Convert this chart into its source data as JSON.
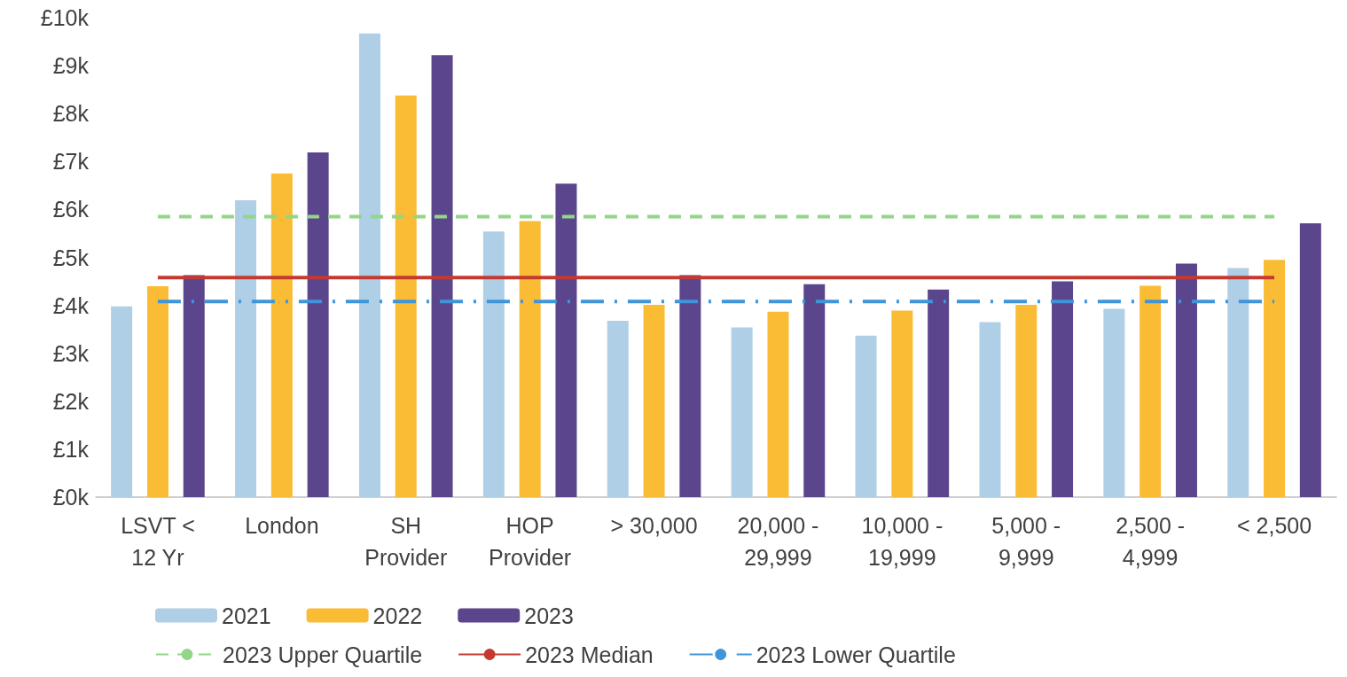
{
  "chart_data": {
    "type": "bar",
    "categories": [
      "LSVT <\n12 Yr",
      "London",
      "SH\nProvider",
      "HOP\nProvider",
      "> 30,000",
      "20,000 -\n29,999",
      "10,000 -\n19,999",
      "5,000 -\n9,999",
      "2,500 -\n4,999",
      "< 2,500"
    ],
    "series": [
      {
        "name": "2021",
        "color": "#afcfe6",
        "values": [
          3.98,
          6.19,
          9.67,
          5.54,
          3.68,
          3.54,
          3.37,
          3.65,
          3.93,
          4.78
        ]
      },
      {
        "name": "2022",
        "color": "#fbbc35",
        "values": [
          4.4,
          6.75,
          8.38,
          5.76,
          4.01,
          3.87,
          3.89,
          4.01,
          4.41,
          4.95
        ]
      },
      {
        "name": "2023",
        "color": "#5b458c",
        "values": [
          4.63,
          7.19,
          9.22,
          6.54,
          4.63,
          4.44,
          4.33,
          4.5,
          4.87,
          5.71
        ]
      },
      {
        "name": "2023 Upper Quartile",
        "type": "line",
        "color": "#92d688",
        "line_style": "dashed",
        "values": [
          5.85,
          5.85,
          5.85,
          5.85,
          5.85,
          5.85,
          5.85,
          5.85,
          5.85,
          5.85
        ]
      },
      {
        "name": "2023 Median",
        "type": "line",
        "color": "#c43a31",
        "line_style": "solid",
        "values": [
          4.58,
          4.58,
          4.58,
          4.58,
          4.58,
          4.58,
          4.58,
          4.58,
          4.58,
          4.58
        ]
      },
      {
        "name": "2023 Lower Quartile",
        "type": "line",
        "color": "#3f95da",
        "line_style": "dashdot",
        "values": [
          4.08,
          4.08,
          4.08,
          4.08,
          4.08,
          4.08,
          4.08,
          4.08,
          4.08,
          4.08
        ]
      }
    ],
    "ylim": [
      0,
      10
    ],
    "yticks": [
      {
        "value": 0,
        "label": "£0k"
      },
      {
        "value": 1,
        "label": "£1k"
      },
      {
        "value": 2,
        "label": "£2k"
      },
      {
        "value": 3,
        "label": "£3k"
      },
      {
        "value": 4,
        "label": "£4k"
      },
      {
        "value": 5,
        "label": "£5k"
      },
      {
        "value": 6,
        "label": "£6k"
      },
      {
        "value": 7,
        "label": "£7k"
      },
      {
        "value": 8,
        "label": "£8k"
      },
      {
        "value": 9,
        "label": "£9k"
      },
      {
        "value": 10,
        "label": "£10k"
      }
    ],
    "grid": false,
    "legend": "bottom",
    "marker": "none"
  }
}
